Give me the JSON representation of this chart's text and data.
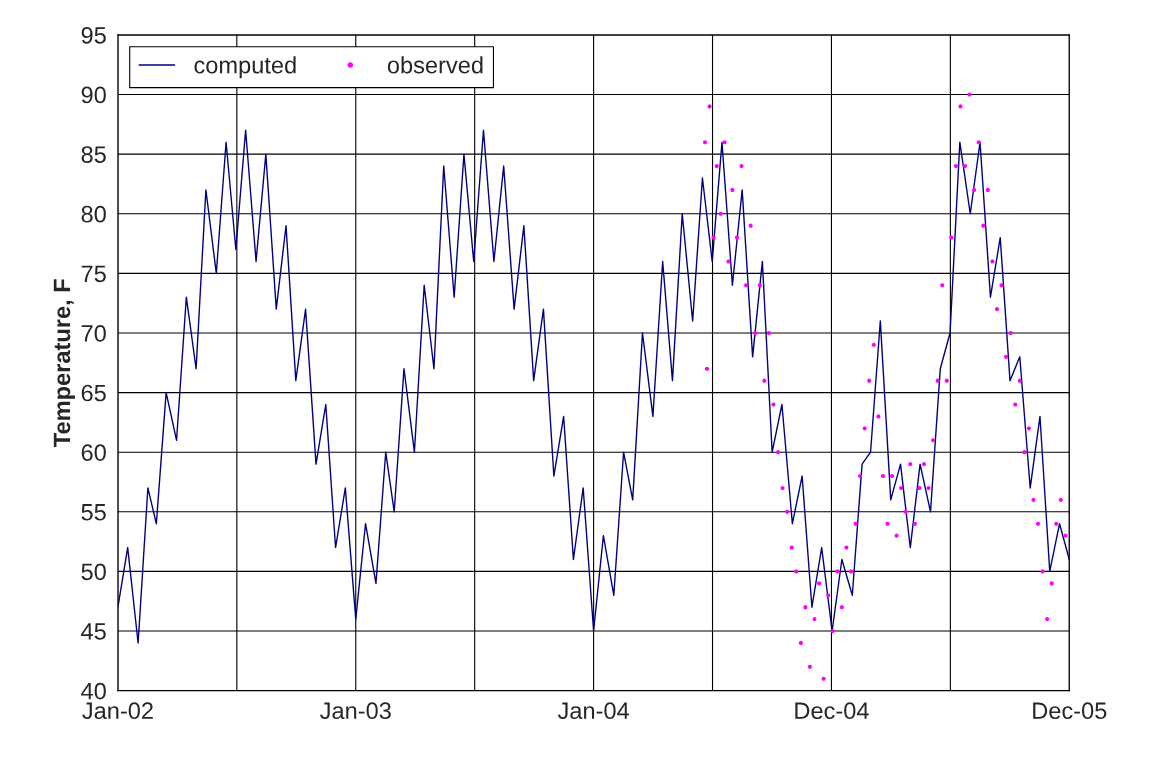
{
  "chart_data": {
    "type": "line",
    "ylabel": "Temperature, F",
    "xlim": [
      "2002-01-01",
      "2005-12-31"
    ],
    "xticks": [
      {
        "value": "2002-01-01",
        "label": "Jan-02"
      },
      {
        "value": "2002-07-02T12:00",
        "label": null
      },
      {
        "value": "2003-01-01",
        "label": "Jan-03"
      },
      {
        "value": "2003-07-02T12:00",
        "label": null
      },
      {
        "value": "2004-01-01",
        "label": "Jan-04"
      },
      {
        "value": "2004-07-01T12:00",
        "label": null
      },
      {
        "value": "2004-12-31",
        "label": "Dec-04"
      },
      {
        "value": "2005-07-01T12:00",
        "label": null
      },
      {
        "value": "2005-12-31",
        "label": "Dec-05"
      }
    ],
    "ylim": [
      40,
      95
    ],
    "yticks": [
      40,
      45,
      50,
      55,
      60,
      65,
      70,
      75,
      80,
      85,
      90,
      95
    ],
    "grid": true,
    "legend": "top left",
    "series": [
      {
        "name": "computed",
        "marker": "none",
        "line_style": "solid",
        "color": "#000080",
        "x": [
          "2002-01-01",
          "2002-01-16",
          "2002-02-01",
          "2002-02-16",
          "2002-03-01",
          "2002-03-16",
          "2002-04-01",
          "2002-04-16",
          "2002-05-01",
          "2002-05-16",
          "2002-06-01",
          "2002-06-16",
          "2002-07-01",
          "2002-07-16",
          "2002-08-01",
          "2002-08-16",
          "2002-09-01",
          "2002-09-16",
          "2002-10-01",
          "2002-10-16",
          "2002-11-01",
          "2002-11-16",
          "2002-12-01",
          "2002-12-16",
          "2003-01-01",
          "2003-01-16",
          "2003-02-01",
          "2003-02-16",
          "2003-03-01",
          "2003-03-16",
          "2003-04-01",
          "2003-04-16",
          "2003-05-01",
          "2003-05-16",
          "2003-06-01",
          "2003-06-16",
          "2003-07-01",
          "2003-07-16",
          "2003-08-01",
          "2003-08-16",
          "2003-09-01",
          "2003-09-16",
          "2003-10-01",
          "2003-10-16",
          "2003-11-01",
          "2003-11-16",
          "2003-12-01",
          "2003-12-16",
          "2004-01-01",
          "2004-01-16",
          "2004-02-01",
          "2004-02-16",
          "2004-03-01",
          "2004-03-16",
          "2004-04-01",
          "2004-04-16",
          "2004-05-01",
          "2004-05-16",
          "2004-06-01",
          "2004-06-16",
          "2004-07-01",
          "2004-07-16",
          "2004-08-01",
          "2004-08-16",
          "2004-09-01",
          "2004-09-16",
          "2004-10-01",
          "2004-10-16",
          "2004-11-01",
          "2004-11-16",
          "2004-12-01",
          "2004-12-16",
          "2005-01-01",
          "2005-01-16",
          "2005-02-01",
          "2005-02-16",
          "2005-03-01",
          "2005-03-16",
          "2005-04-01",
          "2005-04-16",
          "2005-05-01",
          "2005-05-16",
          "2005-06-01",
          "2005-06-16",
          "2005-07-01",
          "2005-07-16",
          "2005-08-01",
          "2005-08-16",
          "2005-09-01",
          "2005-09-16",
          "2005-10-01",
          "2005-10-16",
          "2005-11-01",
          "2005-11-16",
          "2005-12-01",
          "2005-12-16",
          "2005-12-31"
        ],
        "values": [
          47,
          52,
          44,
          57,
          54,
          65,
          61,
          73,
          67,
          82,
          75,
          86,
          77,
          87,
          76,
          85,
          72,
          79,
          66,
          72,
          59,
          64,
          52,
          57,
          46,
          54,
          49,
          60,
          55,
          67,
          60,
          74,
          67,
          84,
          73,
          85,
          76,
          87,
          76,
          84,
          72,
          79,
          66,
          72,
          58,
          63,
          51,
          57,
          45,
          53,
          48,
          60,
          56,
          70,
          63,
          76,
          66,
          80,
          71,
          83,
          76,
          86,
          74,
          82,
          68,
          76,
          60,
          64,
          54,
          58,
          47,
          52,
          45,
          51,
          48,
          59,
          60,
          71,
          56,
          59,
          52,
          59,
          55,
          67,
          70,
          86,
          80,
          86,
          73,
          78,
          66,
          68,
          57,
          63,
          50,
          54,
          51
        ]
      },
      {
        "name": "observed",
        "type": "scatter",
        "marker": "circle",
        "color": "#ff00ff",
        "x": [
          "2004-06-20",
          "2004-06-23",
          "2004-06-27",
          "2004-07-03",
          "2004-07-08",
          "2004-07-14",
          "2004-07-20",
          "2004-07-26",
          "2004-08-01",
          "2004-08-08",
          "2004-08-15",
          "2004-08-22",
          "2004-08-29",
          "2004-09-05",
          "2004-09-12",
          "2004-09-19",
          "2004-09-26",
          "2004-10-03",
          "2004-10-10",
          "2004-10-17",
          "2004-10-24",
          "2004-10-31",
          "2004-11-07",
          "2004-11-14",
          "2004-11-21",
          "2004-11-28",
          "2004-12-05",
          "2004-12-12",
          "2004-12-19",
          "2004-12-26",
          "2005-01-02",
          "2005-01-09",
          "2005-01-16",
          "2005-01-23",
          "2005-01-30",
          "2005-02-06",
          "2005-02-13",
          "2005-02-20",
          "2005-02-27",
          "2005-03-06",
          "2005-03-13",
          "2005-03-20",
          "2005-03-27",
          "2005-04-03",
          "2005-04-10",
          "2005-04-17",
          "2005-04-24",
          "2005-05-01",
          "2005-05-08",
          "2005-05-15",
          "2005-05-22",
          "2005-05-29",
          "2005-06-05",
          "2005-06-12",
          "2005-06-19",
          "2005-06-26",
          "2005-07-03",
          "2005-07-10",
          "2005-07-17",
          "2005-07-24",
          "2005-07-31",
          "2005-08-07",
          "2005-08-14",
          "2005-08-21",
          "2005-08-28",
          "2005-09-04",
          "2005-09-11",
          "2005-09-18",
          "2005-09-25",
          "2005-10-02",
          "2005-10-09",
          "2005-10-16",
          "2005-10-23",
          "2005-10-30",
          "2005-11-06",
          "2005-11-13",
          "2005-11-20",
          "2005-11-27",
          "2005-12-04",
          "2005-12-11",
          "2005-12-18",
          "2005-12-25"
        ],
        "values": [
          86,
          67,
          89,
          78,
          84,
          80,
          86,
          76,
          82,
          78,
          84,
          74,
          79,
          70,
          74,
          66,
          70,
          64,
          60,
          57,
          55,
          52,
          50,
          44,
          47,
          42,
          46,
          49,
          41,
          48,
          45,
          50,
          47,
          52,
          50,
          54,
          58,
          62,
          66,
          69,
          63,
          58,
          54,
          58,
          53,
          57,
          55,
          59,
          54,
          57,
          59,
          57,
          61,
          66,
          74,
          66,
          78,
          84,
          89,
          84,
          90,
          82,
          86,
          79,
          82,
          76,
          72,
          74,
          68,
          70,
          64,
          66,
          60,
          62,
          56,
          54,
          50,
          46,
          49,
          54,
          56,
          53
        ]
      }
    ]
  }
}
